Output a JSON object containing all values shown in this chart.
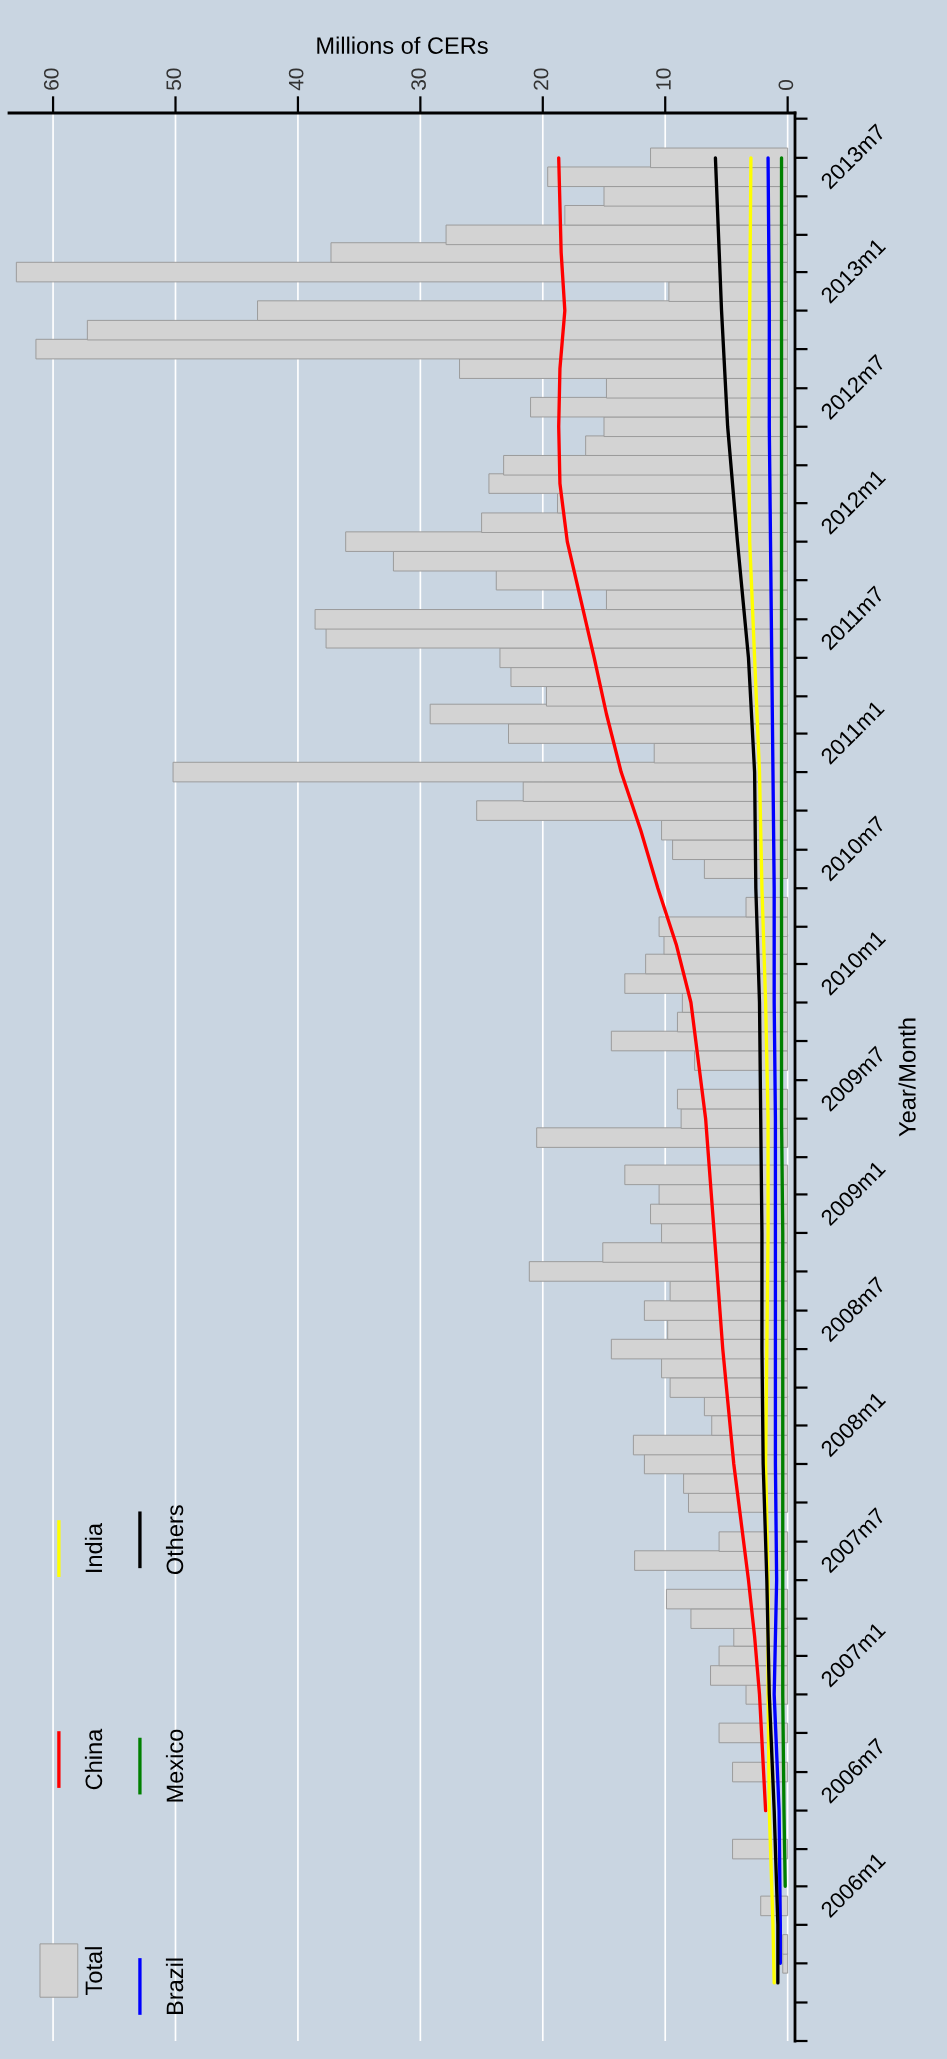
{
  "chart_data": {
    "type": "bar",
    "orientation": "horizontal",
    "xlabel": "Millions of CERs",
    "ylabel": "Year/Month",
    "x": [
      "2005-09",
      "2005-10",
      "2005-11",
      "2005-12",
      "2006-01",
      "2006-02",
      "2006-03",
      "2006-04",
      "2006-05",
      "2006-06",
      "2006-07",
      "2006-08",
      "2006-09",
      "2006-10",
      "2006-11",
      "2006-12",
      "2007-01",
      "2007-02",
      "2007-03",
      "2007-04",
      "2007-05",
      "2007-06",
      "2007-07",
      "2007-08",
      "2007-09",
      "2007-10",
      "2007-11",
      "2007-12",
      "2008-01",
      "2008-02",
      "2008-03",
      "2008-04",
      "2008-05",
      "2008-06",
      "2008-07",
      "2008-08",
      "2008-09",
      "2008-10",
      "2008-11",
      "2008-12",
      "2009-01",
      "2009-02",
      "2009-03",
      "2009-04",
      "2009-05",
      "2009-06",
      "2009-07",
      "2009-08",
      "2009-09",
      "2009-10",
      "2009-11",
      "2009-12",
      "2010-01",
      "2010-02",
      "2010-03",
      "2010-04",
      "2010-05",
      "2010-06",
      "2010-07",
      "2010-08",
      "2010-09",
      "2010-10",
      "2010-11",
      "2010-12",
      "2011-01",
      "2011-02",
      "2011-03",
      "2011-04",
      "2011-05",
      "2011-06",
      "2011-07",
      "2011-08",
      "2011-09",
      "2011-10",
      "2011-11",
      "2011-12",
      "2012-01",
      "2012-02",
      "2012-03",
      "2012-04",
      "2012-05",
      "2012-06",
      "2012-07",
      "2012-08",
      "2012-09",
      "2012-10",
      "2012-11",
      "2012-12",
      "2013-01",
      "2013-02",
      "2013-03",
      "2013-04",
      "2013-05",
      "2013-06",
      "2013-07"
    ],
    "series": [
      {
        "name": "Total",
        "color": "#d3d3d3",
        "values": [
          0.4,
          0.4,
          null,
          2.2,
          null,
          null,
          4.5,
          null,
          null,
          null,
          4.5,
          null,
          5.6,
          null,
          3.4,
          6.3,
          5.6,
          4.4,
          7.9,
          9.9,
          null,
          12.5,
          5.6,
          null,
          8.1,
          8.5,
          11.7,
          12.6,
          6.2,
          6.8,
          9.6,
          10.3,
          14.4,
          9.8,
          11.7,
          9.6,
          21.1,
          15.1,
          10.3,
          11.2,
          10.5,
          13.3,
          null,
          20.5,
          8.7,
          9.0,
          null,
          7.6,
          14.4,
          9.0,
          8.6,
          13.3,
          11.6,
          10.1,
          10.5,
          3.4,
          null,
          6.8,
          9.4,
          10.3,
          25.4,
          21.6,
          50.2,
          10.9,
          22.8,
          29.2,
          19.7,
          22.6,
          23.5,
          37.7,
          38.6,
          14.8,
          23.8,
          32.2,
          36.1,
          25.0,
          18.8,
          24.4,
          23.2,
          16.5,
          15.0,
          21.0,
          14.8,
          26.8,
          61.4,
          57.2,
          43.3,
          9.7,
          63.0,
          37.3,
          27.9,
          18.2,
          15.0,
          19.6,
          11.2
        ]
      },
      {
        "name": "China",
        "type": "line",
        "color": "#ff0000",
        "x": [
          "2006-05",
          "2006-11",
          "2007-02",
          "2007-05",
          "2007-08",
          "2007-11",
          "2008-05",
          "2008-11",
          "2009-05",
          "2009-11",
          "2010-02",
          "2010-05",
          "2010-08",
          "2010-11",
          "2011-02",
          "2011-05",
          "2011-08",
          "2011-11",
          "2012-02",
          "2012-05",
          "2012-08",
          "2012-11",
          "2013-02",
          "2013-07"
        ],
        "values": [
          1.8,
          2.3,
          2.7,
          3.2,
          3.8,
          4.4,
          5.3,
          6.0,
          6.7,
          7.9,
          9.1,
          10.6,
          12.0,
          13.6,
          14.8,
          15.8,
          16.9,
          18.0,
          18.6,
          18.7,
          18.6,
          18.2,
          18.5,
          18.7
        ]
      },
      {
        "name": "India",
        "type": "line",
        "color": "#ffff00",
        "x": [
          "2005-08",
          "2005-11",
          "2006-05",
          "2006-11",
          "2007-05",
          "2007-11",
          "2008-05",
          "2008-11",
          "2009-05",
          "2009-11",
          "2010-05",
          "2010-11",
          "2011-05",
          "2011-11",
          "2012-05",
          "2012-11",
          "2013-07"
        ],
        "values": [
          1.1,
          1.2,
          1.5,
          1.6,
          1.6,
          1.8,
          1.7,
          1.6,
          1.6,
          1.8,
          2.1,
          2.3,
          2.7,
          3.1,
          3.2,
          3.1,
          3.0
        ]
      },
      {
        "name": "Brazil",
        "type": "line",
        "color": "#0000ff",
        "x": [
          "2005-09",
          "2005-11",
          "2006-05",
          "2006-11",
          "2007-05",
          "2007-11",
          "2008-05",
          "2008-11",
          "2009-05",
          "2009-11",
          "2010-05",
          "2010-11",
          "2011-05",
          "2011-11",
          "2012-05",
          "2012-11",
          "2013-07"
        ],
        "values": [
          0.6,
          0.6,
          0.7,
          1.1,
          0.9,
          1.0,
          1.0,
          1.0,
          1.0,
          1.1,
          1.1,
          1.2,
          1.3,
          1.4,
          1.5,
          1.5,
          1.6
        ]
      },
      {
        "name": "Mexico",
        "type": "line",
        "color": "#008000",
        "x": [
          "2006-01",
          "2006-05",
          "2006-11",
          "2007-05",
          "2007-11",
          "2008-05",
          "2008-11",
          "2009-05",
          "2009-11",
          "2010-05",
          "2010-11",
          "2011-05",
          "2011-11",
          "2012-05",
          "2012-11",
          "2013-07"
        ],
        "values": [
          0.2,
          0.3,
          0.4,
          0.4,
          0.4,
          0.4,
          0.4,
          0.5,
          0.5,
          0.5,
          0.5,
          0.5,
          0.5,
          0.5,
          0.5,
          0.5
        ]
      },
      {
        "name": "Others",
        "type": "line",
        "color": "#000000",
        "x": [
          "2005-08",
          "2005-11",
          "2006-05",
          "2006-11",
          "2007-05",
          "2007-11",
          "2008-05",
          "2008-11",
          "2009-05",
          "2009-11",
          "2010-05",
          "2010-11",
          "2011-05",
          "2011-11",
          "2012-05",
          "2012-11",
          "2013-07"
        ],
        "values": [
          0.8,
          0.8,
          1.1,
          1.5,
          1.7,
          2.0,
          2.1,
          2.1,
          2.2,
          2.3,
          2.6,
          2.7,
          3.2,
          4.1,
          4.9,
          5.4,
          5.9
        ]
      }
    ],
    "xlim": [
      63.6,
      -0.6
    ],
    "xticks": [
      0,
      10,
      20,
      30,
      40,
      50,
      60
    ],
    "ylim": [
      "2005-05-01",
      "2013-09-10"
    ],
    "yticks": [
      {
        "value": "2005-05",
        "label": null
      },
      {
        "value": "2005-07",
        "label": null
      },
      {
        "value": "2005-09",
        "label": null
      },
      {
        "value": "2005-11",
        "label": null
      },
      {
        "value": "2006-01",
        "label": "2006m1"
      },
      {
        "value": "2006-03",
        "label": null
      },
      {
        "value": "2006-05",
        "label": null
      },
      {
        "value": "2006-07",
        "label": "2006m7"
      },
      {
        "value": "2006-09",
        "label": null
      },
      {
        "value": "2006-11",
        "label": null
      },
      {
        "value": "2007-01",
        "label": "2007m1"
      },
      {
        "value": "2007-03",
        "label": null
      },
      {
        "value": "2007-05",
        "label": null
      },
      {
        "value": "2007-07",
        "label": "2007m7"
      },
      {
        "value": "2007-09",
        "label": null
      },
      {
        "value": "2007-11",
        "label": null
      },
      {
        "value": "2008-01",
        "label": "2008m1"
      },
      {
        "value": "2008-03",
        "label": null
      },
      {
        "value": "2008-05",
        "label": null
      },
      {
        "value": "2008-07",
        "label": "2008m7"
      },
      {
        "value": "2008-09",
        "label": null
      },
      {
        "value": "2008-11",
        "label": null
      },
      {
        "value": "2009-01",
        "label": "2009m1"
      },
      {
        "value": "2009-03",
        "label": null
      },
      {
        "value": "2009-05",
        "label": null
      },
      {
        "value": "2009-07",
        "label": "2009m7"
      },
      {
        "value": "2009-09",
        "label": null
      },
      {
        "value": "2009-11",
        "label": null
      },
      {
        "value": "2010-01",
        "label": "2010m1"
      },
      {
        "value": "2010-03",
        "label": null
      },
      {
        "value": "2010-05",
        "label": null
      },
      {
        "value": "2010-07",
        "label": "2010m7"
      },
      {
        "value": "2010-09",
        "label": null
      },
      {
        "value": "2010-11",
        "label": null
      },
      {
        "value": "2011-01",
        "label": "2011m1"
      },
      {
        "value": "2011-03",
        "label": null
      },
      {
        "value": "2011-05",
        "label": null
      },
      {
        "value": "2011-07",
        "label": "2011m7"
      },
      {
        "value": "2011-09",
        "label": null
      },
      {
        "value": "2011-11",
        "label": null
      },
      {
        "value": "2012-01",
        "label": "2012m1"
      },
      {
        "value": "2012-03",
        "label": null
      },
      {
        "value": "2012-05",
        "label": null
      },
      {
        "value": "2012-07",
        "label": "2012m7"
      },
      {
        "value": "2012-09",
        "label": null
      },
      {
        "value": "2012-11",
        "label": null
      },
      {
        "value": "2013-01",
        "label": "2013m1"
      },
      {
        "value": "2013-03",
        "label": null
      },
      {
        "value": "2013-05",
        "label": null
      },
      {
        "value": "2013-07",
        "label": "2013m7"
      },
      {
        "value": "2013-09",
        "label": null
      }
    ],
    "grid": "x",
    "legend": "bottom left"
  }
}
